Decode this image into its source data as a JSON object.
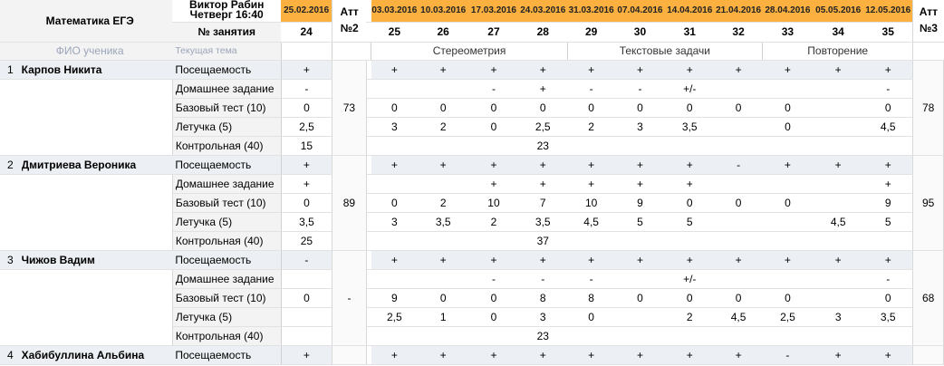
{
  "header": {
    "title": "Математика ЕГЭ",
    "teacher": "Виктор Рабин",
    "datetime": "Четверг 16:40",
    "lesson_label": "№ занятия",
    "col_name": "ФИО ученика",
    "col_topic": "Текущая тема",
    "att2_title_1": "Атт",
    "att2_title_2": "№2",
    "att3_title_1": "Атт",
    "att3_title_2": "№3"
  },
  "lessons": [
    {
      "date": "25.02.2016",
      "num": "24"
    },
    {
      "date": "03.03.2016",
      "num": "25"
    },
    {
      "date": "10.03.2016",
      "num": "26"
    },
    {
      "date": "17.03.2016",
      "num": "27"
    },
    {
      "date": "24.03.2016",
      "num": "28"
    },
    {
      "date": "31.03.2016",
      "num": "29"
    },
    {
      "date": "07.04.2016",
      "num": "30"
    },
    {
      "date": "14.04.2016",
      "num": "31"
    },
    {
      "date": "21.04.2016",
      "num": "32"
    },
    {
      "date": "28.04.2016",
      "num": "33"
    },
    {
      "date": "05.05.2016",
      "num": "34"
    },
    {
      "date": "12.05.2016",
      "num": "35"
    }
  ],
  "topics": [
    "Стереометрия",
    "Текстовые задачи",
    "Повторение"
  ],
  "metrics": [
    "Посещаемость",
    "Домашнее задание",
    "Базовый тест (10)",
    "Летучка (5)",
    "Контрольная (40)"
  ],
  "students": [
    {
      "num": "1",
      "name": "Карпов Никита",
      "att2": "73",
      "att3": "78",
      "rows": [
        [
          "+",
          "+",
          "+",
          "+",
          "+",
          "+",
          "+",
          "+",
          "+",
          "+",
          "+",
          "+"
        ],
        [
          "-",
          "",
          "",
          "-",
          "+",
          "-",
          "-",
          "+/-",
          "",
          "",
          "",
          "-"
        ],
        [
          "0",
          "0",
          "0",
          "0",
          "0",
          "0",
          "0",
          "0",
          "0",
          "0",
          "",
          "0"
        ],
        [
          "2,5",
          "3",
          "2",
          "0",
          "2,5",
          "2",
          "3",
          "3,5",
          "",
          "0",
          "",
          "4,5"
        ],
        [
          "15",
          "",
          "",
          "",
          "23",
          "",
          "",
          "",
          "",
          "",
          "",
          ""
        ]
      ]
    },
    {
      "num": "2",
      "name": "Дмитриева Вероника",
      "att2": "89",
      "att3": "95",
      "rows": [
        [
          "+",
          "+",
          "+",
          "+",
          "+",
          "+",
          "+",
          "+",
          "-",
          "+",
          "+",
          "+"
        ],
        [
          "+",
          "",
          "",
          "+",
          "+",
          "+",
          "+",
          "+",
          "",
          "",
          "",
          "+"
        ],
        [
          "0",
          "0",
          "2",
          "10",
          "7",
          "10",
          "9",
          "0",
          "0",
          "0",
          "",
          "9"
        ],
        [
          "3,5",
          "3",
          "3,5",
          "2",
          "3,5",
          "4,5",
          "5",
          "5",
          "",
          "",
          "4,5",
          "5"
        ],
        [
          "25",
          "",
          "",
          "",
          "37",
          "",
          "",
          "",
          "",
          "",
          "",
          ""
        ]
      ]
    },
    {
      "num": "3",
      "name": "Чижов Вадим",
      "att2": "-",
      "att3": "68",
      "rows": [
        [
          "-",
          "+",
          "+",
          "+",
          "+",
          "+",
          "+",
          "+",
          "+",
          "+",
          "+",
          "+"
        ],
        [
          "",
          "",
          "",
          "-",
          "-",
          "-",
          "",
          "+/-",
          "",
          "",
          "",
          "-"
        ],
        [
          "0",
          "9",
          "0",
          "0",
          "8",
          "8",
          "0",
          "0",
          "0",
          "0",
          "",
          "0"
        ],
        [
          "",
          "2,5",
          "1",
          "0",
          "3",
          "0",
          "",
          "2",
          "4,5",
          "2,5",
          "3",
          "3,5"
        ],
        [
          "",
          "",
          "",
          "",
          "23",
          "",
          "",
          "",
          "",
          "",
          "",
          ""
        ]
      ]
    },
    {
      "num": "4",
      "name": "Хабибуллина Альбина",
      "att2": "",
      "att3": "",
      "rows": [
        [
          "+",
          "+",
          "+",
          "+",
          "+",
          "+",
          "+",
          "+",
          "+",
          "-",
          "+",
          "+"
        ]
      ]
    }
  ]
}
